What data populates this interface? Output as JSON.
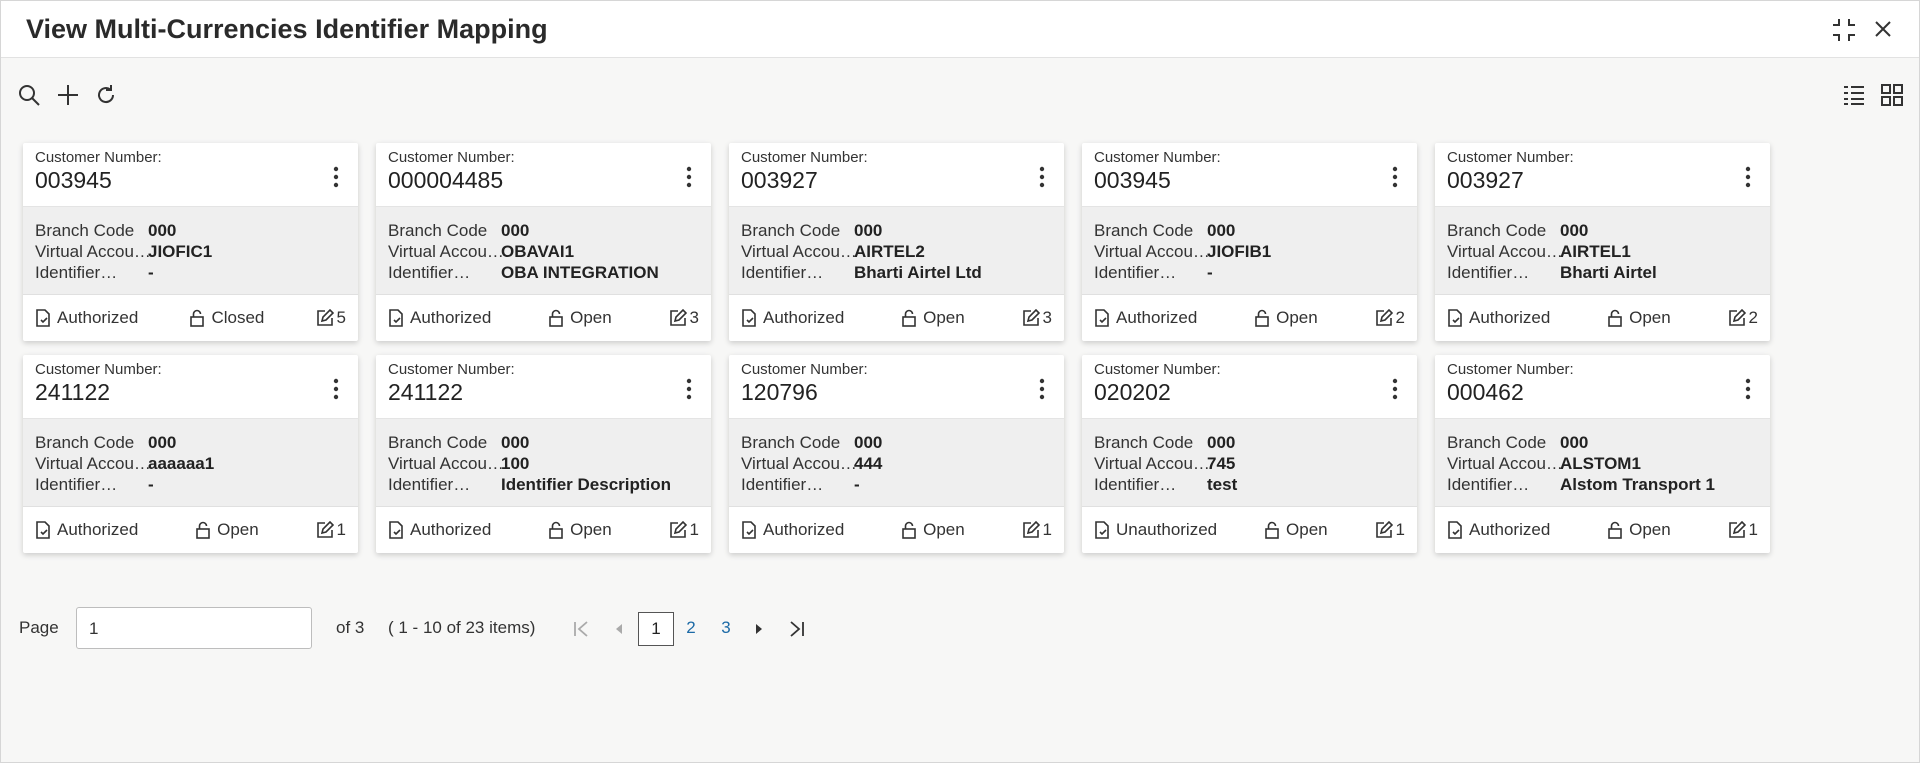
{
  "header": {
    "title": "View Multi-Currencies Identifier Mapping"
  },
  "card_labels": {
    "customer_number": "Customer Number:",
    "fields": [
      "Branch Code",
      "Virtual Accou…",
      "Identifier…"
    ]
  },
  "cards": [
    {
      "customer_number": "003945",
      "values": [
        "000",
        "JIOFIC1",
        "-"
      ],
      "status": "Authorized",
      "lock": "Closed",
      "count": 5
    },
    {
      "customer_number": "000004485",
      "values": [
        "000",
        "OBAVAI1",
        "OBA INTEGRATION"
      ],
      "status": "Authorized",
      "lock": "Open",
      "count": 3
    },
    {
      "customer_number": "003927",
      "values": [
        "000",
        "AIRTEL2",
        "Bharti Airtel Ltd"
      ],
      "status": "Authorized",
      "lock": "Open",
      "count": 3
    },
    {
      "customer_number": "003945",
      "values": [
        "000",
        "JIOFIB1",
        "-"
      ],
      "status": "Authorized",
      "lock": "Open",
      "count": 2
    },
    {
      "customer_number": "003927",
      "values": [
        "000",
        "AIRTEL1",
        "Bharti Airtel"
      ],
      "status": "Authorized",
      "lock": "Open",
      "count": 2
    },
    {
      "customer_number": "241122",
      "values": [
        "000",
        "aaaaaa1",
        "-"
      ],
      "status": "Authorized",
      "lock": "Open",
      "count": 1
    },
    {
      "customer_number": "241122",
      "values": [
        "000",
        "100",
        "Identifier Description"
      ],
      "status": "Authorized",
      "lock": "Open",
      "count": 1
    },
    {
      "customer_number": "120796",
      "values": [
        "000",
        "444",
        "-"
      ],
      "status": "Authorized",
      "lock": "Open",
      "count": 1
    },
    {
      "customer_number": "020202",
      "values": [
        "000",
        "745",
        "test"
      ],
      "status": "Unauthorized",
      "lock": "Open",
      "count": 1
    },
    {
      "customer_number": "000462",
      "values": [
        "000",
        "ALSTOM1",
        "Alstom Transport 1"
      ],
      "status": "Authorized",
      "lock": "Open",
      "count": 1
    }
  ],
  "pagination": {
    "label": "Page",
    "current": 1,
    "of": "of 3",
    "summary": "( 1 - 10 of 23 items)",
    "pages": [
      1,
      2,
      3
    ]
  }
}
